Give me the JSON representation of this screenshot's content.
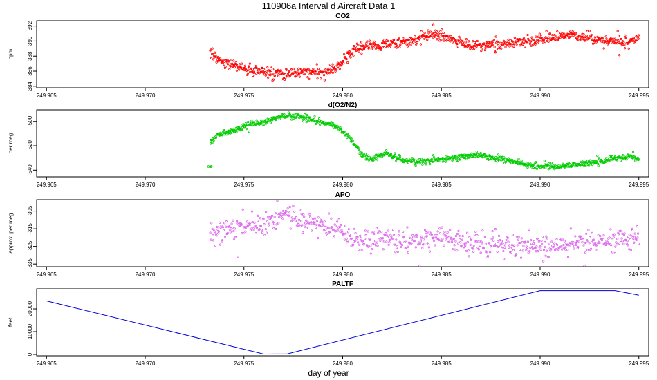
{
  "figure": {
    "title": "110906a   Interval d Aircraft Data 1",
    "xlabel": "day of year"
  },
  "chart_data": [
    {
      "type": "scatter",
      "title": "CO2",
      "ylabel": "ppm",
      "color": "#ff0000",
      "xlim": [
        249.9645,
        249.9955
      ],
      "ylim": [
        383.8,
        392.7
      ],
      "xticks": [
        "249.965",
        "249.970",
        "249.975",
        "249.980",
        "249.985",
        "249.990",
        "249.995"
      ],
      "yticks": [
        "384",
        "386",
        "388",
        "390",
        "392"
      ],
      "x_range": [
        249.9733,
        249.995
      ],
      "profile": [
        [
          249.9733,
          388.5
        ],
        [
          249.974,
          387.0
        ],
        [
          249.975,
          386.4
        ],
        [
          249.976,
          385.9
        ],
        [
          249.977,
          385.6
        ],
        [
          249.978,
          385.9
        ],
        [
          249.979,
          385.8
        ],
        [
          249.9795,
          386.3
        ],
        [
          249.98,
          387.3
        ],
        [
          249.9805,
          388.6
        ],
        [
          249.981,
          389.2
        ],
        [
          249.982,
          389.4
        ],
        [
          249.983,
          389.8
        ],
        [
          249.984,
          390.4
        ],
        [
          249.9848,
          390.9
        ],
        [
          249.9855,
          390.3
        ],
        [
          249.9865,
          389.5
        ],
        [
          249.9875,
          389.4
        ],
        [
          249.9885,
          389.8
        ],
        [
          249.9895,
          390.0
        ],
        [
          249.9905,
          390.5
        ],
        [
          249.9915,
          390.8
        ],
        [
          249.9925,
          390.5
        ],
        [
          249.9935,
          390.0
        ],
        [
          249.9945,
          389.8
        ],
        [
          249.995,
          390.4
        ]
      ],
      "noise": 0.35,
      "count": 850
    },
    {
      "type": "scatter",
      "title": "d(O2/N2)",
      "ylabel": "per meg",
      "color": "#00cc00",
      "xlim": [
        249.9645,
        249.9955
      ],
      "ylim": [
        -545.5,
        -490.5
      ],
      "xticks": [
        "249.965",
        "249.970",
        "249.975",
        "249.980",
        "249.985",
        "249.990",
        "249.995"
      ],
      "yticks": [
        "-500",
        "-520",
        "-540"
      ],
      "x_range": [
        249.9733,
        249.995
      ],
      "profile": [
        [
          249.9733,
          -517.0
        ],
        [
          249.9737,
          -511.0
        ],
        [
          249.9745,
          -507.0
        ],
        [
          249.9752,
          -503.0
        ],
        [
          249.976,
          -500.0
        ],
        [
          249.977,
          -496.0
        ],
        [
          249.9775,
          -495.0
        ],
        [
          249.9785,
          -499.0
        ],
        [
          249.9795,
          -503.0
        ],
        [
          249.98,
          -508.0
        ],
        [
          249.9805,
          -516.0
        ],
        [
          249.981,
          -528.0
        ],
        [
          249.9815,
          -531.0
        ],
        [
          249.9822,
          -526.0
        ],
        [
          249.983,
          -532.0
        ],
        [
          249.984,
          -533.0
        ],
        [
          249.985,
          -531.0
        ],
        [
          249.986,
          -529.0
        ],
        [
          249.987,
          -528.0
        ],
        [
          249.988,
          -531.0
        ],
        [
          249.989,
          -534.0
        ],
        [
          249.99,
          -537.0
        ],
        [
          249.991,
          -537.0
        ],
        [
          249.992,
          -535.0
        ],
        [
          249.993,
          -533.0
        ],
        [
          249.994,
          -530.0
        ],
        [
          249.9945,
          -528.0
        ],
        [
          249.995,
          -531.0
        ]
      ],
      "noise": 1.2,
      "count": 850,
      "extra_points": [
        [
          249.9732,
          -537.0
        ],
        [
          249.9733,
          -537.2
        ],
        [
          249.97335,
          -536.9
        ]
      ]
    },
    {
      "type": "scatter",
      "title": "APO",
      "ylabel": "approx. per meg",
      "color": "#dd66ee",
      "xlim": [
        249.9645,
        249.9955
      ],
      "ylim": [
        -336.5,
        -298.5
      ],
      "xticks": [
        "249.965",
        "249.970",
        "249.975",
        "249.980",
        "249.985",
        "249.990",
        "249.995"
      ],
      "yticks": [
        "-305",
        "-315",
        "-325",
        "-335"
      ],
      "x_range": [
        249.9733,
        249.995
      ],
      "profile": [
        [
          249.9733,
          -318.0
        ],
        [
          249.9745,
          -314.0
        ],
        [
          249.9755,
          -313.0
        ],
        [
          249.9765,
          -309.0
        ],
        [
          249.9772,
          -306.0
        ],
        [
          249.978,
          -311.0
        ],
        [
          249.979,
          -314.0
        ],
        [
          249.98,
          -318.0
        ],
        [
          249.981,
          -322.0
        ],
        [
          249.982,
          -321.0
        ],
        [
          249.9835,
          -322.0
        ],
        [
          249.985,
          -320.0
        ],
        [
          249.986,
          -322.0
        ],
        [
          249.987,
          -324.0
        ],
        [
          249.988,
          -324.0
        ],
        [
          249.989,
          -325.0
        ],
        [
          249.99,
          -325.0
        ],
        [
          249.991,
          -325.0
        ],
        [
          249.992,
          -323.0
        ],
        [
          249.993,
          -322.0
        ],
        [
          249.994,
          -320.0
        ],
        [
          249.995,
          -319.0
        ]
      ],
      "noise": 3.2,
      "count": 700
    },
    {
      "type": "line",
      "title": "PALTF",
      "ylabel": "feet",
      "color": "#0000dd",
      "xlim": [
        249.9645,
        249.9955
      ],
      "ylim": [
        -600,
        28800
      ],
      "xticks": [
        "249.965",
        "249.970",
        "249.975",
        "249.980",
        "249.985",
        "249.990",
        "249.995"
      ],
      "yticks": [
        "0",
        "10000",
        "20000"
      ],
      "points": [
        [
          249.965,
          23500
        ],
        [
          249.976,
          150
        ],
        [
          249.9772,
          250
        ],
        [
          249.99,
          28000
        ],
        [
          249.9938,
          28000
        ],
        [
          249.995,
          26000
        ]
      ]
    }
  ]
}
